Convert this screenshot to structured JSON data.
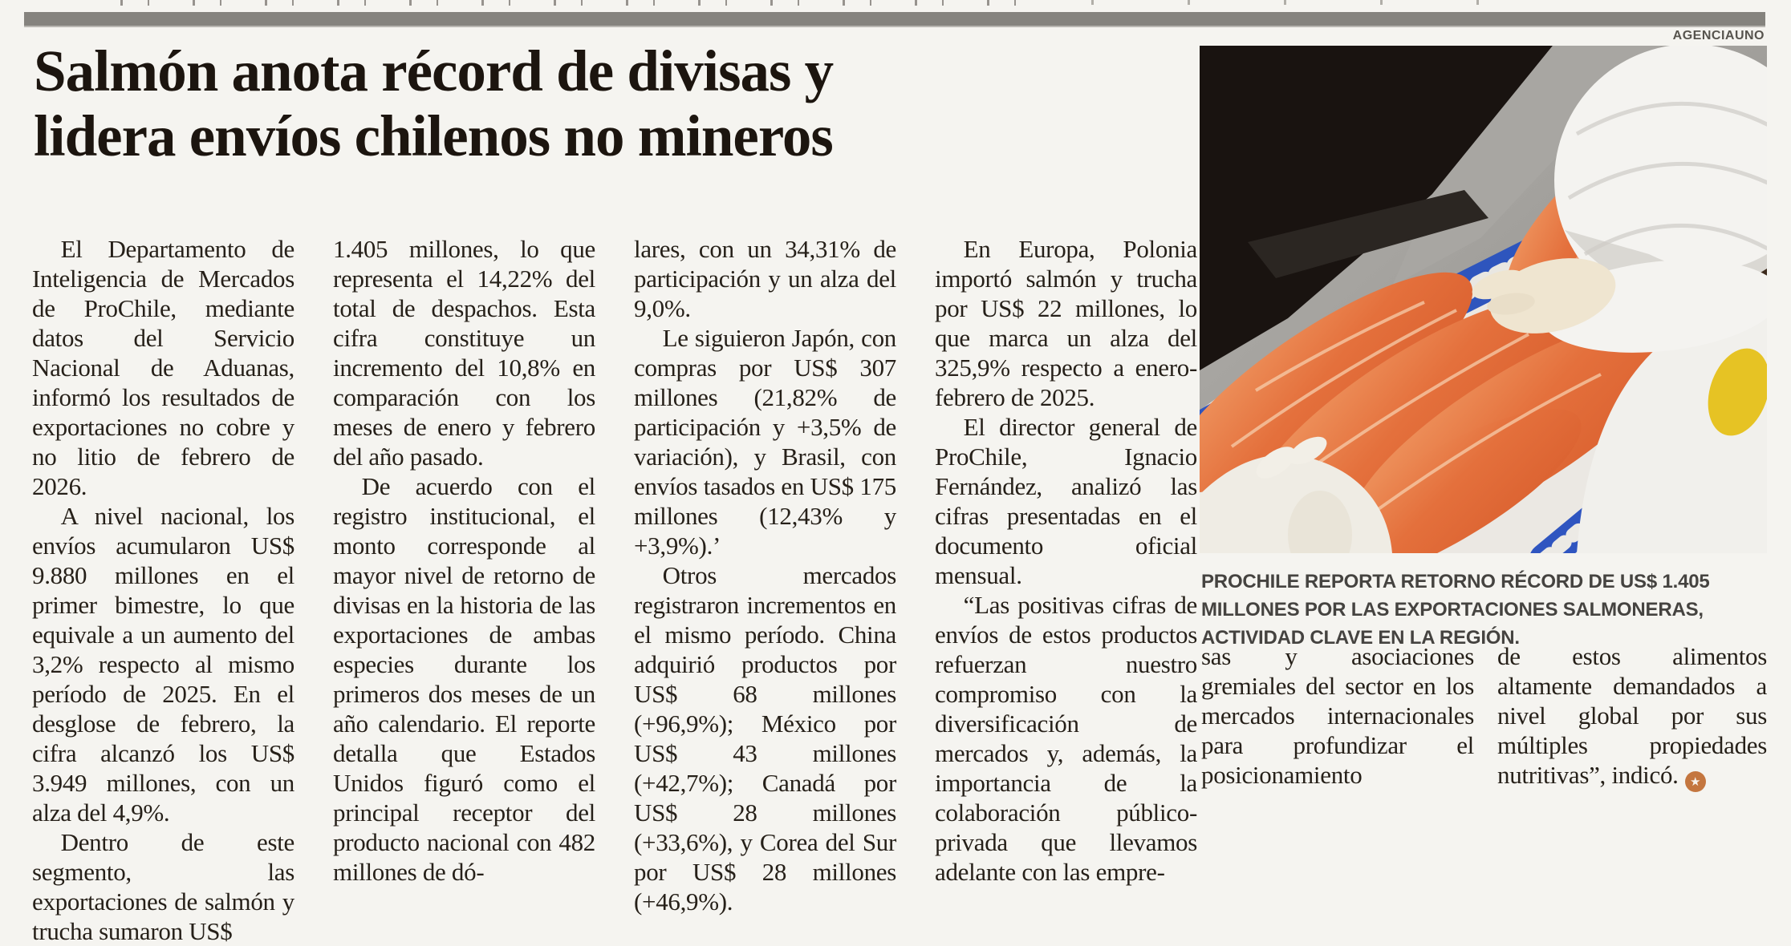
{
  "page": {
    "paper_color": "#f5f4f0",
    "rule_color": "#85837e"
  },
  "photo": {
    "credit": "AGENCIAUNO",
    "caption": "PROCHILE REPORTA RETORNO RÉCORD DE US$ 1.405 MILLONES POR LAS EXPORTACIONES SALMONERAS, ACTIVIDAD CLAVE EN LA REGIÓN.",
    "subject_colors": {
      "salmon": "#e4703c",
      "crate_blue": "#3056be",
      "plastic_white": "#ebe8e3",
      "dark_corner": "#191310"
    }
  },
  "headline": {
    "line1": "Salmón anota récord de divisas y",
    "line2": "lidera envíos chilenos no mineros"
  },
  "article": {
    "columns": [
      {
        "paragraphs": [
          {
            "indent": true,
            "text": "El Departamento de Inteligencia de Mercados de ProChile, mediante datos del Servicio Nacional de Aduanas, informó los resultados de exportaciones no cobre y no litio de febrero de 2026."
          },
          {
            "indent": true,
            "text": "A nivel nacional, los envíos acumularon US$ 9.880 millones en el primer bimestre, lo que equivale a un aumento del 3,2% respecto al mismo período de 2025. En el desglose de febrero, la cifra alcanzó los US$ 3.949 millones, con un alza del 4,9%."
          },
          {
            "indent": true,
            "text": "Dentro de este segmento, las exportaciones de salmón y trucha sumaron US$"
          }
        ]
      },
      {
        "paragraphs": [
          {
            "indent": false,
            "text": "1.405 millones, lo que representa el 14,22% del total de despachos. Esta cifra constituye un incremento del 10,8% en comparación con los meses de enero y febrero del año pasado."
          },
          {
            "indent": true,
            "text": "De acuerdo con el registro institucional, el monto corresponde al mayor nivel de retorno de divisas en la historia de las exportaciones de ambas especies durante los primeros dos meses de un año calendario. El reporte detalla que Estados Unidos figuró como el principal receptor del producto nacional con 482 millones de dó-"
          }
        ]
      },
      {
        "paragraphs": [
          {
            "indent": false,
            "text": "lares, con un 34,31% de participación y un alza del 9,0%."
          },
          {
            "indent": true,
            "text": "Le siguieron Japón, con compras por US$ 307 millones (21,82% de participación y +3,5% de variación), y Brasil, con envíos tasados en US$ 175 millones (12,43% y +3,9%).’"
          },
          {
            "indent": true,
            "text": "Otros mercados registraron incrementos en el mismo período. China adquirió productos por US$ 68 millones (+96,9%); México por US$ 43 millones (+42,7%); Canadá por US$ 28 millones (+33,6%), y Corea del Sur por US$ 28 millones (+46,9%)."
          }
        ]
      },
      {
        "paragraphs": [
          {
            "indent": true,
            "text": "En Europa, Polonia importó salmón y trucha por US$ 22 millones, lo que marca un alza del 325,9% respecto a enero-febrero de 2025."
          },
          {
            "indent": true,
            "text": "El director general de ProChile, Ignacio Fernández, analizó las cifras presentadas en el documento oficial mensual."
          },
          {
            "indent": true,
            "text": "“Las positivas cifras de envíos de estos productos refuerzan nuestro compromiso con la diversificación de mercados y, además, la importancia de la colaboración público-privada que llevamos adelante con las empre-"
          }
        ]
      },
      {
        "paragraphs": [
          {
            "indent": false,
            "text": "sas y asociaciones gremiales del sector en los mercados internacionales para profundizar el posicionamiento"
          }
        ]
      },
      {
        "paragraphs": [
          {
            "indent": false,
            "text": "de estos alimentos altamente demandados a nivel global por sus múltiples propiedades nutritivas”, indicó."
          }
        ]
      }
    ],
    "end_mark": {
      "glyph": "★",
      "color": "#c4763f"
    }
  }
}
